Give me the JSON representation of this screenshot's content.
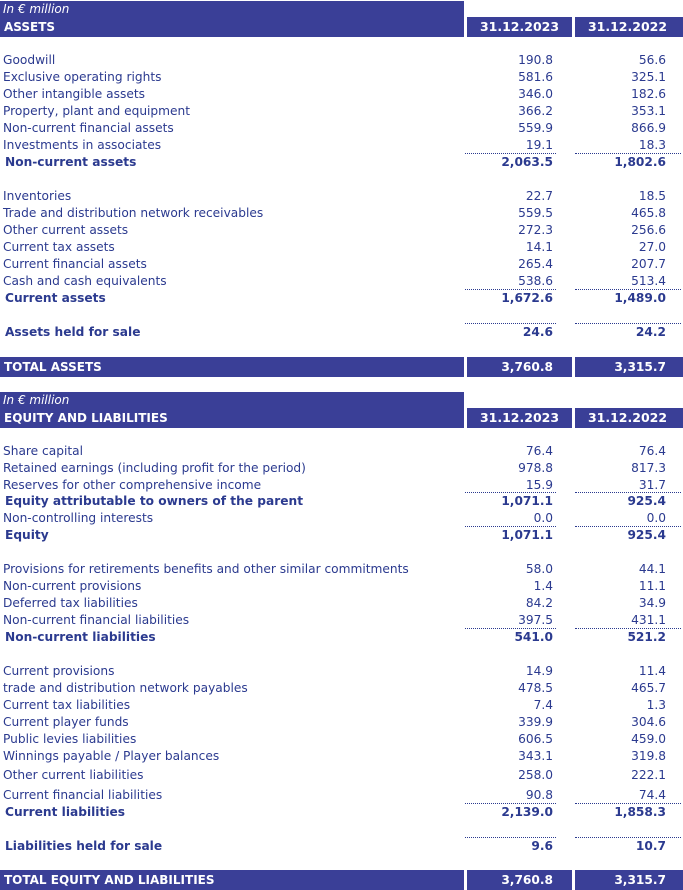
{
  "assets": {
    "unit": "In € million",
    "title": "ASSETS",
    "col1": "31.12.2023",
    "col2": "31.12.2022",
    "noncurrent": [
      {
        "label": "Goodwill",
        "v1": "190.8",
        "v2": "56.6"
      },
      {
        "label": "Exclusive operating rights",
        "v1": "581.6",
        "v2": "325.1"
      },
      {
        "label": "Other intangible assets",
        "v1": "346.0",
        "v2": "182.6"
      },
      {
        "label": "Property, plant and equipment",
        "v1": "366.2",
        "v2": "353.1"
      },
      {
        "label": "Non-current financial assets",
        "v1": "559.9",
        "v2": "866.9"
      },
      {
        "label": "Investments in associates",
        "v1": "19.1",
        "v2": "18.3"
      }
    ],
    "noncurrent_total": {
      "label": "Non-current assets",
      "v1": "2,063.5",
      "v2": "1,802.6"
    },
    "current": [
      {
        "label": "Inventories",
        "v1": "22.7",
        "v2": "18.5"
      },
      {
        "label": "Trade and distribution network receivables",
        "v1": "559.5",
        "v2": "465.8"
      },
      {
        "label": "Other current assets",
        "v1": "272.3",
        "v2": "256.6"
      },
      {
        "label": "Current tax assets",
        "v1": "14.1",
        "v2": "27.0"
      },
      {
        "label": "Current financial assets",
        "v1": "265.4",
        "v2": "207.7"
      },
      {
        "label": "Cash and cash equivalents",
        "v1": "538.6",
        "v2": "513.4"
      }
    ],
    "current_total": {
      "label": "Current assets",
      "v1": "1,672.6",
      "v2": "1,489.0"
    },
    "held_for_sale": {
      "label": "Assets held for sale",
      "v1": "24.6",
      "v2": "24.2"
    },
    "total": {
      "label": "TOTAL ASSETS",
      "v1": "3,760.8",
      "v2": "3,315.7"
    }
  },
  "liabilities": {
    "unit": "In € million",
    "title": "EQUITY AND LIABILITIES",
    "col1": "31.12.2023",
    "col2": "31.12.2022",
    "equity_items": [
      {
        "label": "Share capital",
        "v1": "76.4",
        "v2": "76.4"
      },
      {
        "label": "Retained earnings (including profit for the period)",
        "v1": "978.8",
        "v2": "817.3"
      },
      {
        "label": "Reserves for other comprehensive income",
        "v1": "15.9",
        "v2": "31.7"
      }
    ],
    "equity_parent": {
      "label": "Equity attributable to owners of the parent",
      "v1": "1,071.1",
      "v2": "925.4"
    },
    "nci": {
      "label": "Non-controlling interests",
      "v1": "0.0",
      "v2": "0.0"
    },
    "equity_total": {
      "label": "Equity",
      "v1": "1,071.1",
      "v2": "925.4"
    },
    "noncurrent": [
      {
        "label": "Provisions for retirements benefits and other similar commitments",
        "v1": "58.0",
        "v2": "44.1"
      },
      {
        "label": "Non-current provisions",
        "v1": "1.4",
        "v2": "11.1"
      },
      {
        "label": "Deferred tax liabilities",
        "v1": "84.2",
        "v2": "34.9"
      },
      {
        "label": "Non-current financial liabilities",
        "v1": "397.5",
        "v2": "431.1"
      }
    ],
    "noncurrent_total": {
      "label": "Non-current liabilities",
      "v1": "541.0",
      "v2": "521.2"
    },
    "current": [
      {
        "label": "Current provisions",
        "v1": "14.9",
        "v2": "11.4"
      },
      {
        "label": "trade and distribution network payables",
        "v1": "478.5",
        "v2": "465.7"
      },
      {
        "label": "Current tax liabilities",
        "v1": "7.4",
        "v2": "1.3"
      },
      {
        "label": "Current player funds",
        "v1": "339.9",
        "v2": "304.6"
      },
      {
        "label": "Public levies liabilities",
        "v1": "606.5",
        "v2": "459.0"
      },
      {
        "label": "Winnings payable / Player balances",
        "v1": "343.1",
        "v2": "319.8"
      },
      {
        "label": "Other current liabilities",
        "v1": "258.0",
        "v2": "222.1"
      },
      {
        "label": "Current financial liabilities",
        "v1": "90.8",
        "v2": "74.4"
      }
    ],
    "current_total": {
      "label": "Current liabilities",
      "v1": "2,139.0",
      "v2": "1,858.3"
    },
    "held_for_sale": {
      "label": "Liabilities held for sale",
      "v1": "9.6",
      "v2": "10.7"
    },
    "total": {
      "label": "TOTAL EQUITY AND LIABILITIES",
      "v1": "3,760.8",
      "v2": "3,315.7"
    }
  }
}
